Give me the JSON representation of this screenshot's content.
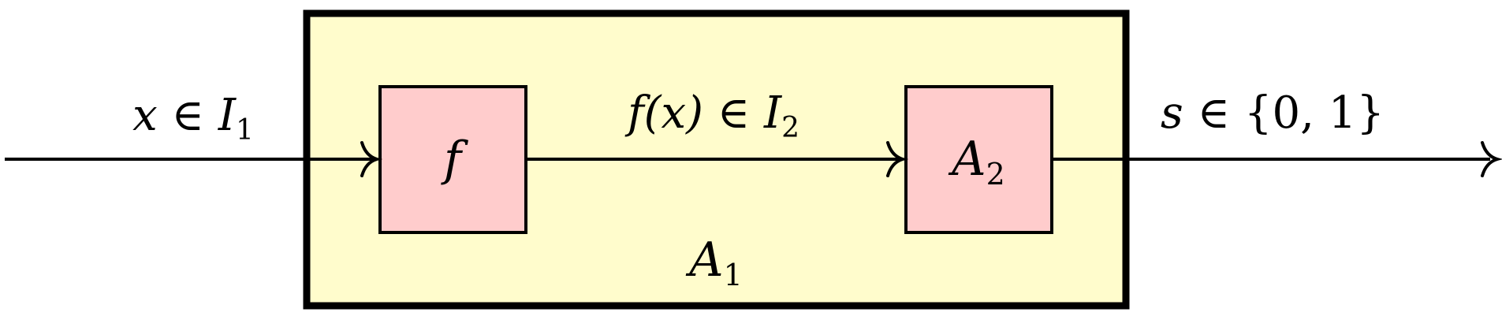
{
  "colors": {
    "outer_fill": "#fffccc",
    "inner_fill": "#ffcccc",
    "stroke": "#000000"
  },
  "outer_box": {
    "label_main": "A",
    "label_sub": "1"
  },
  "box_f": {
    "label": "f"
  },
  "box_a2": {
    "label_main": "A",
    "label_sub": "2"
  },
  "input": {
    "var": "x",
    "rel": " ∈ ",
    "set_main": "I",
    "set_sub": "1"
  },
  "middle": {
    "func": "f",
    "arg": "(x)",
    "rel": " ∈ ",
    "set_main": "I",
    "set_sub": "2"
  },
  "output": {
    "var": "s",
    "rel": " ∈ ",
    "set": "{0, 1}"
  }
}
